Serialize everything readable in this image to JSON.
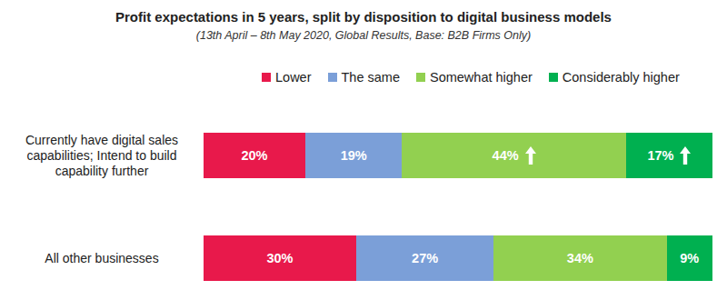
{
  "chart_data": {
    "type": "bar",
    "title": "Profit expectations in 5 years, split by disposition to digital business models",
    "subtitle": "(13th April – 8th May 2020, Global Results, Base: B2B Firms Only)",
    "orientation": "horizontal",
    "stacked": true,
    "data_labels": true,
    "tick_labels": false,
    "legend": "top",
    "xlim": [
      0,
      100
    ],
    "categories": [
      "Currently have digital sales capabilities; Intend to build capability further",
      "All other businesses"
    ],
    "series": [
      {
        "name": "Lower",
        "color": "#e8194b",
        "values": [
          20,
          30
        ],
        "value_labels": [
          "20%",
          "30%"
        ],
        "significant": [
          false,
          false
        ]
      },
      {
        "name": "The same",
        "color": "#7b9fd8",
        "values": [
          19,
          27
        ],
        "value_labels": [
          "19%",
          "27%"
        ],
        "significant": [
          false,
          false
        ]
      },
      {
        "name": "Somewhat higher",
        "color": "#92d050",
        "values": [
          44,
          34
        ],
        "value_labels": [
          "44%",
          "34%"
        ],
        "significant": [
          true,
          false
        ]
      },
      {
        "name": "Considerably higher",
        "color": "#00b050",
        "values": [
          17,
          9
        ],
        "value_labels": [
          "17%",
          "9%"
        ],
        "significant": [
          true,
          false
        ]
      }
    ]
  }
}
